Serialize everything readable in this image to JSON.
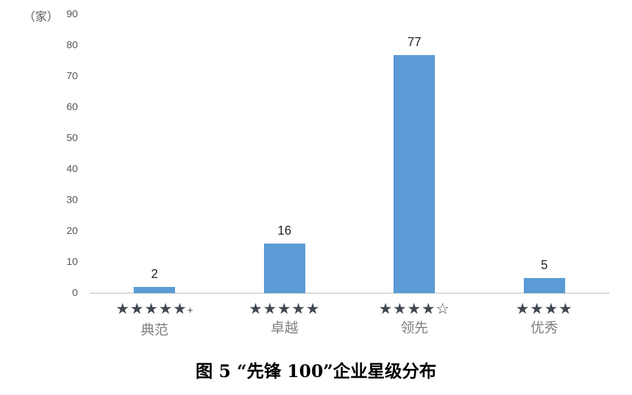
{
  "chart_data": {
    "type": "bar",
    "title": "图 5  “先锋 100”企业星级分布",
    "ylabel": "（家）",
    "xlabel": "",
    "ylim": [
      0,
      90
    ],
    "ytick_step": 10,
    "grid": false,
    "legend": false,
    "bar_color": "#5B9BD5",
    "axis_line_color": "#D9D9D9",
    "categories": [
      {
        "stars": "★★★★★+",
        "label": "典范"
      },
      {
        "stars": "★★★★★",
        "label": "卓越"
      },
      {
        "stars": "★★★★☆",
        "label": "领先"
      },
      {
        "stars": "★★★★",
        "label": "优秀"
      }
    ],
    "values": [
      2,
      16,
      77,
      5
    ]
  }
}
